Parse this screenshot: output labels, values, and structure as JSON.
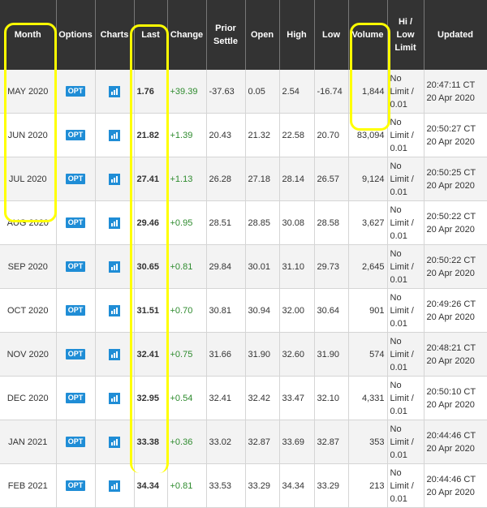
{
  "columns": [
    "Month",
    "Options",
    "Charts",
    "Last",
    "Change",
    "Prior Settle",
    "Open",
    "High",
    "Low",
    "Volume",
    "Hi / Low Limit",
    "Updated"
  ],
  "rows": [
    {
      "month": "MAY 2020",
      "options": "OPT",
      "last": "1.76",
      "change": "+39.39",
      "prior": "-37.63",
      "open": "0.05",
      "high": "2.54",
      "low": "-16.74",
      "volume": "1,844",
      "limit": "No Limit / 0.01",
      "time": "20:47:11 CT",
      "date": "20 Apr 2020"
    },
    {
      "month": "JUN 2020",
      "options": "OPT",
      "last": "21.82",
      "change": "+1.39",
      "prior": "20.43",
      "open": "21.32",
      "high": "22.58",
      "low": "20.70",
      "volume": "83,094",
      "limit": "No Limit / 0.01",
      "time": "20:50:27 CT",
      "date": "20 Apr 2020"
    },
    {
      "month": "JUL 2020",
      "options": "OPT",
      "last": "27.41",
      "change": "+1.13",
      "prior": "26.28",
      "open": "27.18",
      "high": "28.14",
      "low": "26.57",
      "volume": "9,124",
      "limit": "No Limit / 0.01",
      "time": "20:50:25 CT",
      "date": "20 Apr 2020"
    },
    {
      "month": "AUG 2020",
      "options": "OPT",
      "last": "29.46",
      "change": "+0.95",
      "prior": "28.51",
      "open": "28.85",
      "high": "30.08",
      "low": "28.58",
      "volume": "3,627",
      "limit": "No Limit / 0.01",
      "time": "20:50:22 CT",
      "date": "20 Apr 2020"
    },
    {
      "month": "SEP 2020",
      "options": "OPT",
      "last": "30.65",
      "change": "+0.81",
      "prior": "29.84",
      "open": "30.01",
      "high": "31.10",
      "low": "29.73",
      "volume": "2,645",
      "limit": "No Limit / 0.01",
      "time": "20:50:22 CT",
      "date": "20 Apr 2020"
    },
    {
      "month": "OCT 2020",
      "options": "OPT",
      "last": "31.51",
      "change": "+0.70",
      "prior": "30.81",
      "open": "30.94",
      "high": "32.00",
      "low": "30.64",
      "volume": "901",
      "limit": "No Limit / 0.01",
      "time": "20:49:26 CT",
      "date": "20 Apr 2020"
    },
    {
      "month": "NOV 2020",
      "options": "OPT",
      "last": "32.41",
      "change": "+0.75",
      "prior": "31.66",
      "open": "31.90",
      "high": "32.60",
      "low": "31.90",
      "volume": "574",
      "limit": "No Limit / 0.01",
      "time": "20:48:21 CT",
      "date": "20 Apr 2020"
    },
    {
      "month": "DEC 2020",
      "options": "OPT",
      "last": "32.95",
      "change": "+0.54",
      "prior": "32.41",
      "open": "32.42",
      "high": "33.47",
      "low": "32.10",
      "volume": "4,331",
      "limit": "No Limit / 0.01",
      "time": "20:50:10 CT",
      "date": "20 Apr 2020"
    },
    {
      "month": "JAN 2021",
      "options": "OPT",
      "last": "33.38",
      "change": "+0.36",
      "prior": "33.02",
      "open": "32.87",
      "high": "33.69",
      "low": "32.87",
      "volume": "353",
      "limit": "No Limit / 0.01",
      "time": "20:44:46 CT",
      "date": "20 Apr 2020"
    },
    {
      "month": "FEB 2021",
      "options": "OPT",
      "last": "34.34",
      "change": "+0.81",
      "prior": "33.53",
      "open": "33.29",
      "high": "34.34",
      "low": "33.29",
      "volume": "213",
      "limit": "No Limit / 0.01",
      "time": "20:44:46 CT",
      "date": "20 Apr 2020"
    }
  ],
  "colors": {
    "header_bg": "#333333",
    "opt_badge": "#1f8dd6",
    "change_positive": "#2e8b2e",
    "highlight": "#ffff00"
  },
  "icons": {
    "chart": "bar-chart-icon"
  }
}
